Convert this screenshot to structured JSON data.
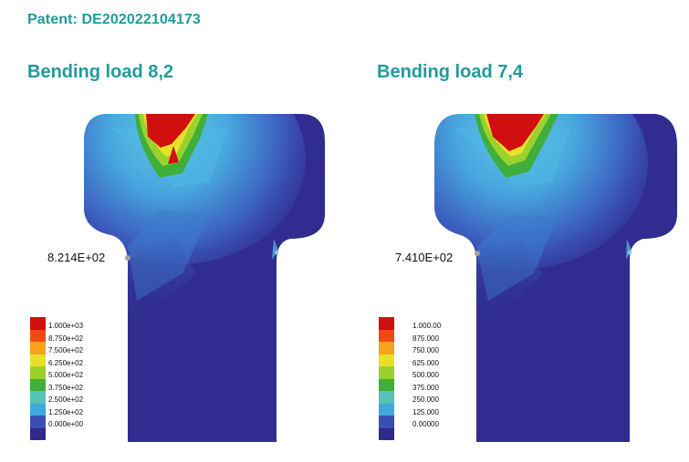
{
  "header": {
    "patent": "Patent: DE202022104173"
  },
  "panels": [
    {
      "title": "Bending load 8,2",
      "peak_value_label": "8.214E+02",
      "legend_ticks": [
        "1.000e+03",
        "8.750e+02",
        "7.500e+02",
        "6.250e+02",
        "5.000e+02",
        "3.750e+02",
        "2.500e+02",
        "1.250e+02",
        "0.000e+00"
      ]
    },
    {
      "title": "Bending load 7,4",
      "peak_value_label": "7.410E+02",
      "legend_ticks": [
        "1.000.00",
        "875.000",
        "750.000",
        "625.000",
        "500.000",
        "375.000",
        "250.000",
        "125.000",
        "0.00000"
      ]
    }
  ],
  "colormap": [
    "#d10f0f",
    "#f04a12",
    "#f7a21a",
    "#e9e02a",
    "#9bd12c",
    "#3fae3a",
    "#55c3b5",
    "#3ea9e0",
    "#3a4fb4",
    "#2f2a8c"
  ]
}
